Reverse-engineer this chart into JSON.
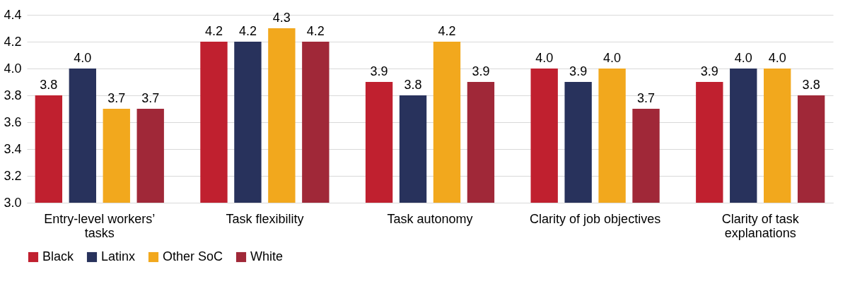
{
  "chart_data": {
    "type": "bar",
    "categories": [
      "Entry-level workers’ tasks",
      "Task flexibility",
      "Task autonomy",
      "Clarity of job objectives",
      "Clarity of task explanations"
    ],
    "series": [
      {
        "name": "Black",
        "color": "#c0202f",
        "values": [
          3.8,
          4.2,
          3.9,
          4.0,
          3.9
        ],
        "value_labels": [
          "3.8",
          "4.2",
          "3.9",
          "4.0",
          "3.9"
        ]
      },
      {
        "name": "Latinx",
        "color": "#28325c",
        "values": [
          4.0,
          4.2,
          3.8,
          3.9,
          4.0
        ],
        "value_labels": [
          "4.0",
          "4.2",
          "3.8",
          "3.9",
          "4.0"
        ]
      },
      {
        "name": "Other SoC",
        "color": "#f2a81d",
        "values": [
          3.7,
          4.3,
          4.2,
          4.0,
          4.0
        ],
        "value_labels": [
          "3.7",
          "4.3",
          "4.2",
          "4.0",
          "4.0"
        ]
      },
      {
        "name": "White",
        "color": "#a02838",
        "values": [
          3.7,
          4.2,
          3.9,
          3.7,
          3.8
        ],
        "value_labels": [
          "3.7",
          "4.2",
          "3.9",
          "3.7",
          "3.8"
        ]
      }
    ],
    "ylim": [
      3.0,
      4.4
    ],
    "yticks": [
      {
        "value": 3.0,
        "label": "3.0"
      },
      {
        "value": 3.2,
        "label": "3.2"
      },
      {
        "value": 3.4,
        "label": "3.4"
      },
      {
        "value": 3.6,
        "label": "3.6"
      },
      {
        "value": 3.8,
        "label": "3.8"
      },
      {
        "value": 4.0,
        "label": "4.0"
      },
      {
        "value": 4.2,
        "label": "4.2"
      },
      {
        "value": 4.4,
        "label": "4.4"
      }
    ],
    "grid": "y",
    "legend": "bottom"
  }
}
